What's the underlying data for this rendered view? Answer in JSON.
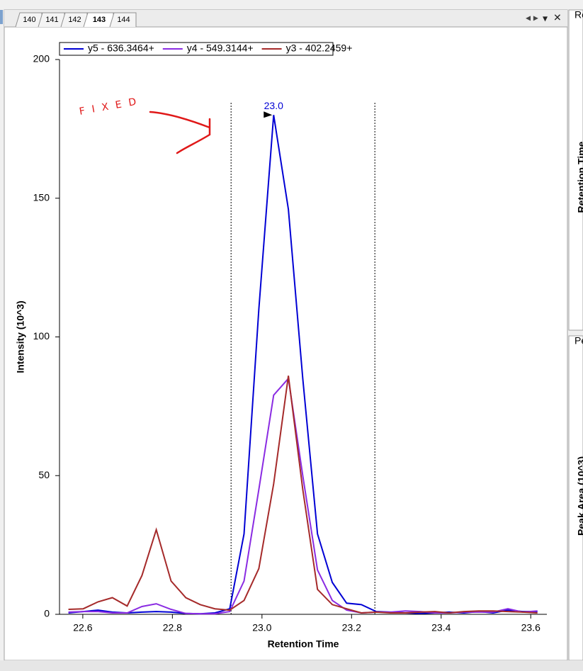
{
  "tabs": [
    "140",
    "141",
    "142",
    "143",
    "144"
  ],
  "active_tab": "143",
  "side_panels": [
    {
      "title": "Re",
      "axis_title": "Retention Time"
    },
    {
      "title": "Pe",
      "axis_title": "Peak Area (10^3)"
    }
  ],
  "chart_data": {
    "type": "line",
    "x_label": "Retention Time",
    "y_label": "Intensity (10^3)",
    "peak_label": "23.0",
    "handwritten_note": "FIXED",
    "x": [
      22.568,
      22.601,
      22.634,
      22.666,
      22.699,
      22.732,
      22.764,
      22.797,
      22.83,
      22.862,
      22.895,
      22.928,
      22.96,
      22.993,
      23.026,
      23.059,
      23.091,
      23.124,
      23.157,
      23.189,
      23.222,
      23.255,
      23.287,
      23.32,
      23.353,
      23.386,
      23.418,
      23.451,
      23.484,
      23.516,
      23.549,
      23.582,
      23.615
    ],
    "series": [
      {
        "name": "y5 - 636.3464+",
        "color": "#0000d4",
        "values": [
          0.5,
          1,
          1.5,
          0.8,
          0.5,
          0.8,
          1,
          0.8,
          0.3,
          0.2,
          0.5,
          2,
          29,
          110,
          180,
          146,
          85,
          29,
          11.5,
          4,
          3.5,
          1,
          0.8,
          0.5,
          0.3,
          0.5,
          0.8,
          0.5,
          1,
          0.5,
          1.5,
          1,
          1
        ]
      },
      {
        "name": "y4 - 549.3144+",
        "color": "#8a2be2",
        "values": [
          0.8,
          1,
          1,
          0.5,
          0.5,
          2.8,
          3.8,
          1.8,
          0.3,
          0.2,
          0.2,
          1,
          12,
          45,
          79,
          85,
          50,
          16,
          5,
          1.5,
          0.5,
          0.8,
          0.8,
          1.2,
          1,
          0.5,
          0.5,
          0.8,
          0.8,
          0.8,
          2,
          0.8,
          1.2
        ]
      },
      {
        "name": "y3 - 402.2459+",
        "color": "#a52a2a",
        "values": [
          1.8,
          2,
          4.5,
          6,
          3,
          14,
          30.5,
          12,
          6,
          3.5,
          2,
          1.5,
          5,
          16.5,
          47,
          86,
          45,
          9,
          3.5,
          2,
          0.5,
          0.8,
          0.5,
          0.5,
          0.8,
          1,
          0.5,
          1,
          1.2,
          1.2,
          1,
          0.8,
          0.5
        ]
      }
    ],
    "boundaries": [
      22.931,
      23.252
    ],
    "xlim": [
      22.548,
      23.636
    ],
    "ylim": [
      0,
      200
    ],
    "xticks": [
      22.6,
      22.8,
      {
        "value": 23.0,
        "label": "23.0"
      },
      23.2,
      23.4,
      23.6
    ],
    "yticks": [
      0,
      50,
      100,
      150,
      200
    ],
    "legend": "top-left"
  }
}
